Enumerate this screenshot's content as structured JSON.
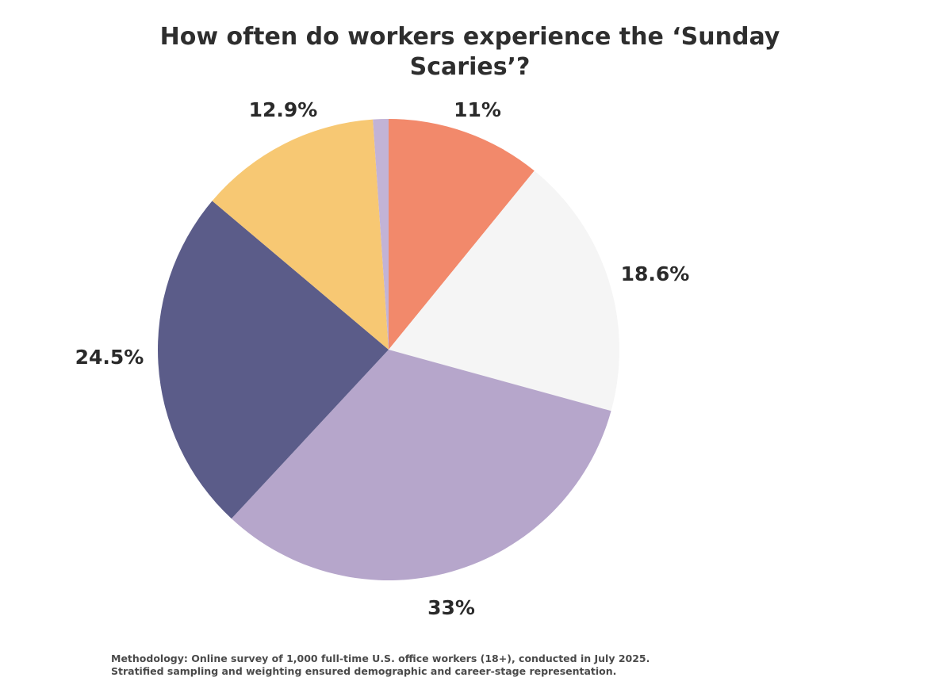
{
  "chart_data": {
    "type": "pie",
    "title": "How often do workers experience the ‘Sunday Scaries’?",
    "slices": [
      {
        "value": 11,
        "label": "11%",
        "color": "#f2896b"
      },
      {
        "value": 18.6,
        "label": "18.6%",
        "color": "#f5f5f5"
      },
      {
        "value": 33,
        "label": "33%",
        "color": "#b6a6cb"
      },
      {
        "value": 24.5,
        "label": "24.5%",
        "color": "#5b5c89"
      },
      {
        "value": 12.9,
        "label": "12.9%",
        "color": "#f7c873"
      },
      {
        "value": 1.1,
        "label": "",
        "color": "#c2b3d6"
      }
    ],
    "legend": "none"
  },
  "footer": {
    "methodology": "Methodology: Online survey of 1,000 full-time U.S. office workers (18+), conducted in July 2025. Stratified sampling and weighting ensured demographic and career-stage representation."
  }
}
